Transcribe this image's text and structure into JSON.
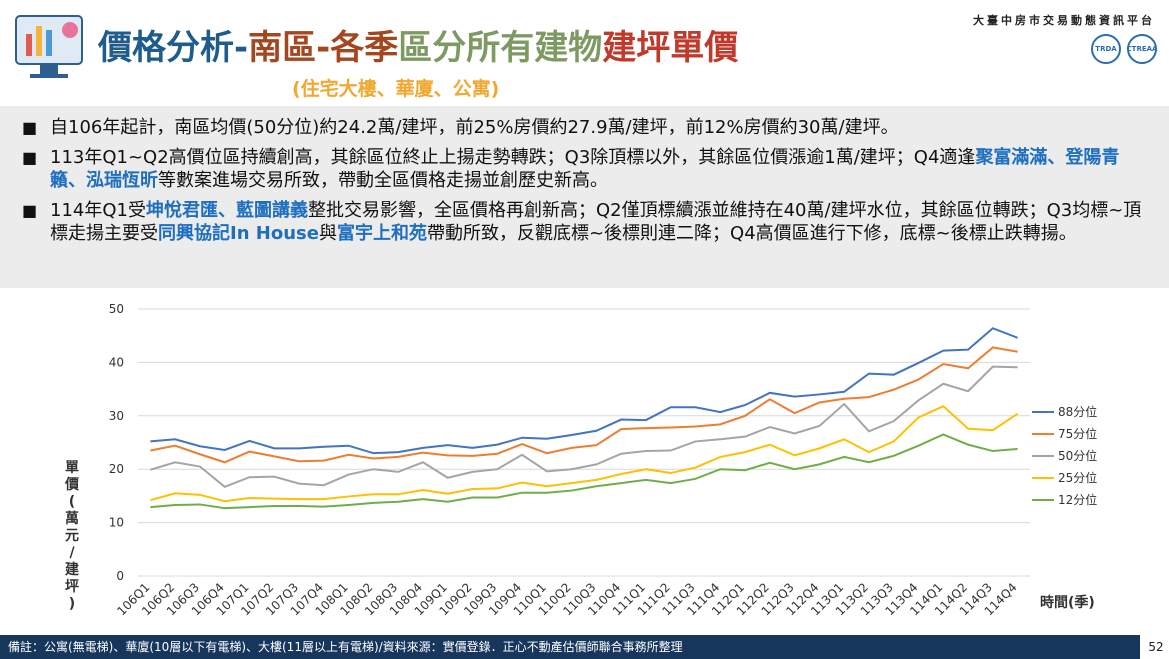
{
  "header": {
    "title": [
      {
        "text": "價格分析-",
        "color": "#1f5c8b"
      },
      {
        "text": "南區-各季",
        "color": "#a4461f"
      },
      {
        "text": "區分所有建物",
        "color": "#7d9a63"
      },
      {
        "text": "建坪單價",
        "color": "#c0392b"
      }
    ],
    "subtitle": "(住宅大樓、華廈、公寓)",
    "platform": "大臺中房市交易動態資訊平台",
    "logos": [
      "TRDA",
      "CTREAA"
    ]
  },
  "bullets": [
    [
      {
        "text": "自106年起計，南區均價(50分位)約24.2萬/建坪，前25%房價約27.9萬/建坪，前12%房價約30萬/建坪。"
      }
    ],
    [
      {
        "text": "113年Q1~Q2高價位區持續創高，其餘區位終止上揚走勢轉跌；Q3除頂標以外，其餘區位價漲逾1萬/建坪；Q4適逢"
      },
      {
        "text": "聚富滿滿、登陽青籟、泓瑞恆昕",
        "highlight": true
      },
      {
        "text": "等數案進場交易所致，帶動全區價格走揚並創歷史新高。"
      }
    ],
    [
      {
        "text": "114年Q1受"
      },
      {
        "text": "坤悅君匯、藍圖講義",
        "highlight": true
      },
      {
        "text": "整批交易影響，全區價格再創新高；Q2僅頂標續漲並維持在40萬/建坪水位，其餘區位轉跌；Q3均標~頂標走揚主要受"
      },
      {
        "text": "同興協記In House",
        "highlight": true
      },
      {
        "text": "與"
      },
      {
        "text": "富宇上和苑",
        "highlight": true
      },
      {
        "text": "帶動所致，反觀底標~後標則連二降；Q4高價區進行下修，底標~後標止跌轉揚。"
      }
    ]
  ],
  "chart_data": {
    "type": "line",
    "y_label": "單價(萬元/建坪)",
    "x_label": "時間(季)",
    "categories": [
      "106Q1",
      "106Q2",
      "106Q3",
      "106Q4",
      "107Q1",
      "107Q2",
      "107Q3",
      "107Q4",
      "108Q1",
      "108Q2",
      "108Q3",
      "108Q4",
      "109Q1",
      "109Q2",
      "109Q3",
      "109Q4",
      "110Q1",
      "110Q2",
      "110Q3",
      "110Q4",
      "111Q1",
      "111Q2",
      "111Q3",
      "111Q4",
      "112Q1",
      "112Q2",
      "112Q3",
      "112Q4",
      "113Q1",
      "113Q2",
      "113Q3",
      "113Q4",
      "114Q1",
      "114Q2",
      "114Q3",
      "114Q4"
    ],
    "ylim": [
      0,
      50
    ],
    "yticks": [
      0,
      10,
      20,
      30,
      40,
      50
    ],
    "grid": true,
    "legend": "right",
    "series": [
      {
        "name": "88分位",
        "color": "#4472c4",
        "values": [
          25.2,
          25.6,
          24.3,
          23.6,
          25.3,
          23.9,
          23.9,
          24.2,
          24.4,
          23.0,
          23.2,
          24.0,
          24.5,
          24.0,
          24.6,
          25.9,
          25.7,
          26.4,
          27.2,
          29.3,
          29.2,
          31.6,
          31.6,
          30.7,
          32.0,
          34.3,
          33.6,
          34.0,
          34.5,
          37.9,
          37.7,
          39.9,
          42.2,
          42.4,
          46.4,
          44.6
        ]
      },
      {
        "name": "75分位",
        "color": "#ed7d31",
        "values": [
          23.5,
          24.4,
          22.8,
          21.3,
          23.3,
          22.4,
          21.5,
          21.6,
          22.7,
          22.0,
          22.3,
          23.1,
          22.6,
          22.5,
          22.9,
          24.7,
          23.0,
          24.0,
          24.5,
          27.5,
          27.7,
          27.8,
          28.0,
          28.4,
          30.0,
          33.1,
          30.5,
          32.5,
          33.2,
          33.5,
          34.9,
          36.8,
          39.7,
          38.9,
          42.8,
          42.0
        ]
      },
      {
        "name": "50分位",
        "color": "#a5a5a5",
        "values": [
          19.9,
          21.3,
          20.5,
          16.7,
          18.5,
          18.6,
          17.3,
          17.0,
          19.0,
          20.0,
          19.5,
          21.3,
          18.4,
          19.5,
          20.0,
          22.7,
          19.6,
          20.0,
          20.9,
          22.9,
          23.4,
          23.5,
          25.2,
          25.6,
          26.1,
          27.9,
          26.7,
          28.1,
          32.2,
          27.1,
          29.0,
          32.9,
          36.0,
          34.6,
          39.2,
          39.1
        ]
      },
      {
        "name": "25分位",
        "color": "#ffc000",
        "values": [
          14.2,
          15.5,
          15.2,
          14.0,
          14.6,
          14.5,
          14.4,
          14.4,
          14.9,
          15.3,
          15.3,
          16.1,
          15.4,
          16.3,
          16.4,
          17.5,
          16.8,
          17.4,
          18.0,
          19.1,
          20.0,
          19.3,
          20.3,
          22.3,
          23.2,
          24.6,
          22.6,
          23.9,
          25.6,
          23.2,
          25.2,
          29.7,
          31.8,
          27.6,
          27.3,
          30.4
        ]
      },
      {
        "name": "12分位",
        "color": "#70ad47",
        "values": [
          12.9,
          13.3,
          13.4,
          12.7,
          12.9,
          13.1,
          13.1,
          13.0,
          13.3,
          13.7,
          13.9,
          14.4,
          13.9,
          14.7,
          14.7,
          15.6,
          15.6,
          16.0,
          16.8,
          17.4,
          18.0,
          17.4,
          18.2,
          20.0,
          19.8,
          21.2,
          20.0,
          20.9,
          22.3,
          21.3,
          22.5,
          24.4,
          26.5,
          24.6,
          23.4,
          23.8
        ]
      }
    ]
  },
  "footer": {
    "note": "備註：公寓(無電梯)、華廈(10層以下有電梯)、大樓(11層以上有電梯)/資料來源：實價登錄．正心不動產估價師聯合事務所整理",
    "page": "52"
  }
}
